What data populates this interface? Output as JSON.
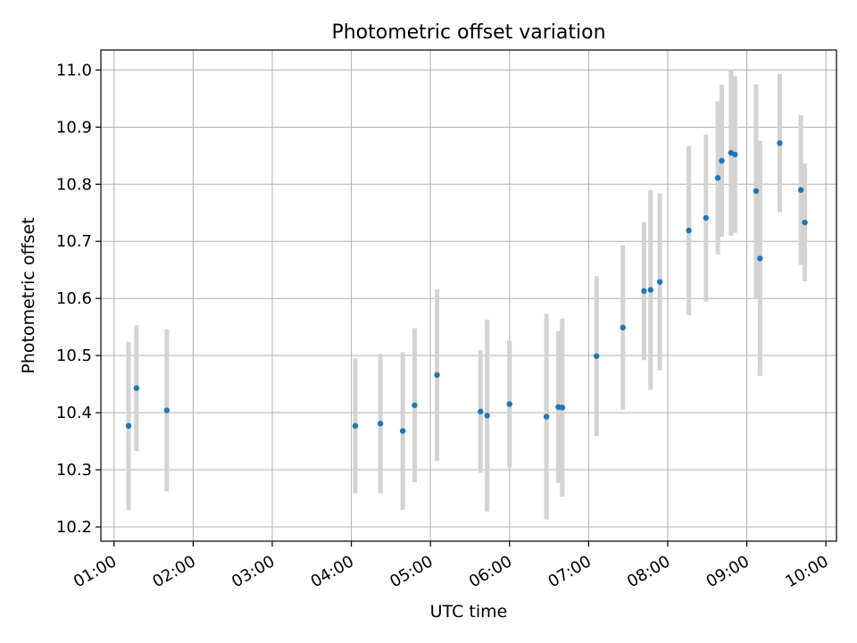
{
  "chart_data": {
    "type": "scatter",
    "title": "Photometric offset variation",
    "xlabel": "UTC time",
    "ylabel": "Photometric offset",
    "xlim": [
      "00:50",
      "10:08"
    ],
    "ylim": [
      10.175,
      11.035
    ],
    "x_ticks": [
      "01:00",
      "02:00",
      "03:00",
      "04:00",
      "05:00",
      "06:00",
      "07:00",
      "08:00",
      "09:00",
      "10:00"
    ],
    "y_ticks": [
      "10.2",
      "10.3",
      "10.4",
      "10.5",
      "10.6",
      "10.7",
      "10.8",
      "10.9",
      "11.0"
    ],
    "grid": true,
    "colors": {
      "point": "#1f77b4",
      "errorbar": "#d3d3d3",
      "grid": "#b0b0b0"
    },
    "points": [
      {
        "t": "01:11",
        "y": 10.377,
        "err": 0.147
      },
      {
        "t": "01:17",
        "y": 10.443,
        "err": 0.11
      },
      {
        "t": "01:40",
        "y": 10.404,
        "err": 0.142
      },
      {
        "t": "04:03",
        "y": 10.377,
        "err": 0.118
      },
      {
        "t": "04:22",
        "y": 10.381,
        "err": 0.122
      },
      {
        "t": "04:39",
        "y": 10.368,
        "err": 0.138
      },
      {
        "t": "04:48",
        "y": 10.413,
        "err": 0.135
      },
      {
        "t": "05:05",
        "y": 10.466,
        "err": 0.15
      },
      {
        "t": "05:38",
        "y": 10.402,
        "err": 0.107
      },
      {
        "t": "05:43",
        "y": 10.395,
        "err": 0.168
      },
      {
        "t": "06:00",
        "y": 10.415,
        "err": 0.111
      },
      {
        "t": "06:28",
        "y": 10.393,
        "err": 0.18
      },
      {
        "t": "06:37",
        "y": 10.41,
        "err": 0.133
      },
      {
        "t": "06:40",
        "y": 10.409,
        "err": 0.156
      },
      {
        "t": "07:06",
        "y": 10.499,
        "err": 0.14
      },
      {
        "t": "07:26",
        "y": 10.549,
        "err": 0.144
      },
      {
        "t": "07:42",
        "y": 10.613,
        "err": 0.121
      },
      {
        "t": "07:47",
        "y": 10.615,
        "err": 0.175
      },
      {
        "t": "07:54",
        "y": 10.629,
        "err": 0.155
      },
      {
        "t": "08:16",
        "y": 10.719,
        "err": 0.148
      },
      {
        "t": "08:29",
        "y": 10.741,
        "err": 0.146
      },
      {
        "t": "08:38",
        "y": 10.811,
        "err": 0.134
      },
      {
        "t": "08:41",
        "y": 10.841,
        "err": 0.133
      },
      {
        "t": "08:48",
        "y": 10.855,
        "err": 0.145
      },
      {
        "t": "08:51",
        "y": 10.852,
        "err": 0.137
      },
      {
        "t": "09:07",
        "y": 10.788,
        "err": 0.187
      },
      {
        "t": "09:10",
        "y": 10.67,
        "err": 0.206
      },
      {
        "t": "09:25",
        "y": 10.872,
        "err": 0.121
      },
      {
        "t": "09:41",
        "y": 10.79,
        "err": 0.131
      },
      {
        "t": "09:44",
        "y": 10.733,
        "err": 0.103
      }
    ]
  }
}
